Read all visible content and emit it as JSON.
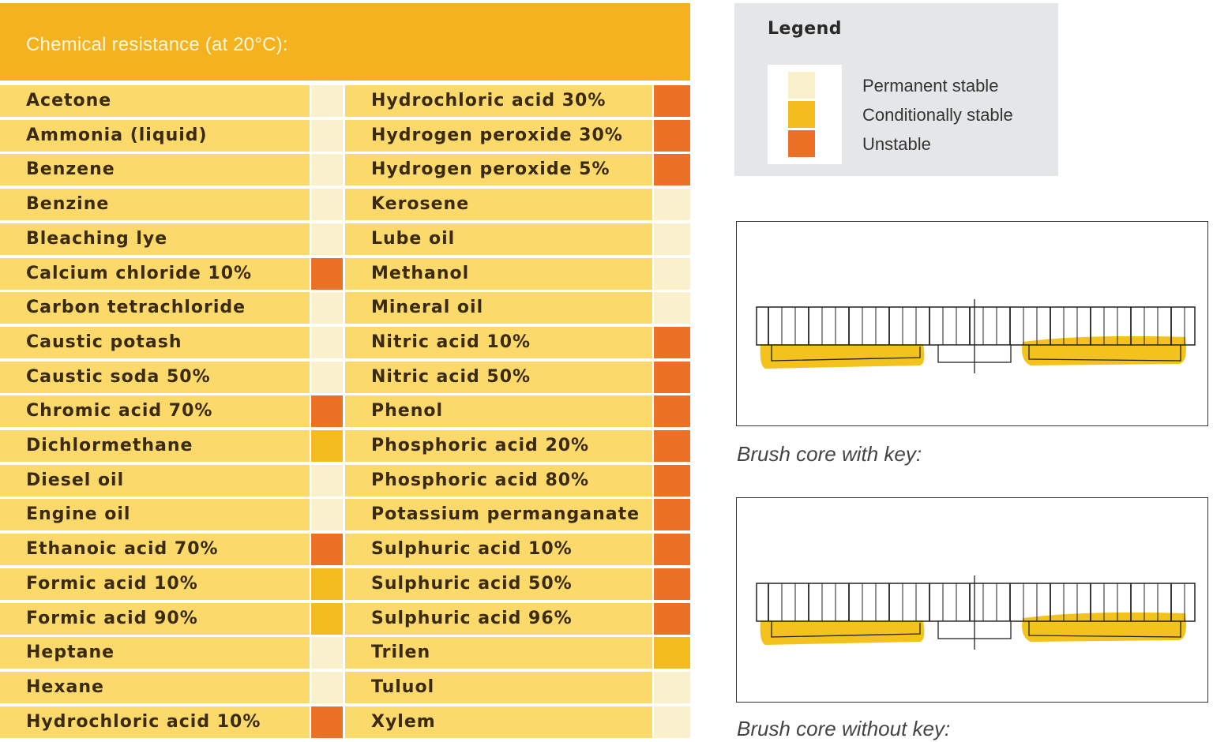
{
  "table": {
    "title": "Chemical resistance (at 20°C):",
    "colors": {
      "permanent": "#fbf0cc",
      "conditional": "#f4bc1e",
      "unstable": "#ec7126"
    },
    "column1": [
      {
        "name": "Acetone",
        "status": "permanent"
      },
      {
        "name": "Ammonia (liquid)",
        "status": "permanent"
      },
      {
        "name": "Benzene",
        "status": "permanent"
      },
      {
        "name": "Benzine",
        "status": "permanent"
      },
      {
        "name": "Bleaching lye",
        "status": "permanent"
      },
      {
        "name": "Calcium chloride 10%",
        "status": "unstable"
      },
      {
        "name": "Carbon tetrachloride",
        "status": "permanent"
      },
      {
        "name": "Caustic potash",
        "status": "permanent"
      },
      {
        "name": "Caustic soda 50%",
        "status": "permanent"
      },
      {
        "name": "Chromic acid 70%",
        "status": "unstable"
      },
      {
        "name": "Dichlormethane",
        "status": "conditional"
      },
      {
        "name": "Diesel oil",
        "status": "permanent"
      },
      {
        "name": "Engine oil",
        "status": "permanent"
      },
      {
        "name": "Ethanoic acid 70%",
        "status": "unstable"
      },
      {
        "name": "Formic acid 10%",
        "status": "conditional"
      },
      {
        "name": "Formic acid 90%",
        "status": "conditional"
      },
      {
        "name": "Heptane",
        "status": "permanent"
      },
      {
        "name": "Hexane",
        "status": "permanent"
      },
      {
        "name": "Hydrochloric acid 10%",
        "status": "unstable"
      }
    ],
    "column2": [
      {
        "name": "Hydrochloric acid 30%",
        "status": "unstable"
      },
      {
        "name": "Hydrogen peroxide 30%",
        "status": "unstable"
      },
      {
        "name": "Hydrogen peroxide 5%",
        "status": "unstable"
      },
      {
        "name": "Kerosene",
        "status": "permanent"
      },
      {
        "name": "Lube oil",
        "status": "permanent"
      },
      {
        "name": "Methanol",
        "status": "permanent"
      },
      {
        "name": "Mineral oil",
        "status": "permanent"
      },
      {
        "name": "Nitric acid 10%",
        "status": "unstable"
      },
      {
        "name": "Nitric acid 50%",
        "status": "unstable"
      },
      {
        "name": "Phenol",
        "status": "unstable"
      },
      {
        "name": "Phosphoric acid 20%",
        "status": "unstable"
      },
      {
        "name": "Phosphoric acid 80%",
        "status": "unstable"
      },
      {
        "name": "Potassium permanganate",
        "status": "unstable"
      },
      {
        "name": "Sulphuric acid 10%",
        "status": "unstable"
      },
      {
        "name": "Sulphuric acid 50%",
        "status": "unstable"
      },
      {
        "name": "Sulphuric acid 96%",
        "status": "unstable"
      },
      {
        "name": "Trilen",
        "status": "conditional"
      },
      {
        "name": "Tuluol",
        "status": "permanent"
      },
      {
        "name": "Xylem",
        "status": "permanent"
      }
    ]
  },
  "legend": {
    "title": "Legend",
    "items": [
      {
        "label": "Permanent stable",
        "color": "#fbf0cc"
      },
      {
        "label": "Conditionally stable",
        "color": "#f4bc1e"
      },
      {
        "label": "Unstable",
        "color": "#ec7126"
      }
    ]
  },
  "figures": [
    {
      "caption": "Brush core with key:",
      "highlight_color": "#f4c21c"
    },
    {
      "caption": "Brush core without key:",
      "highlight_color": "#f4c21c"
    }
  ]
}
